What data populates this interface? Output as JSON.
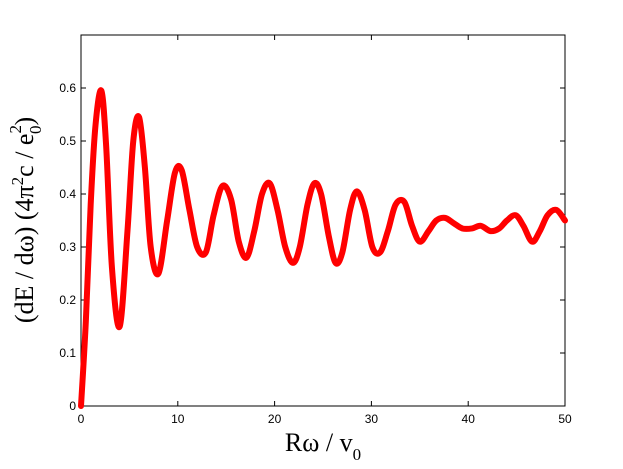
{
  "chart_data": {
    "type": "line",
    "title": "",
    "xlabel": {
      "main": "Rω / v",
      "sub": "0"
    },
    "ylabel": {
      "p1": "(dE / dω) (4π",
      "p1_sup": "2",
      "p2": "c / e",
      "p2_sup": "2",
      "p2_sub": "0",
      "p3": ")"
    },
    "xlim": [
      0,
      50
    ],
    "ylim": [
      0,
      0.7
    ],
    "xticks": [
      0,
      10,
      20,
      30,
      40,
      50
    ],
    "yticks": [
      0,
      0.1,
      0.2,
      0.3,
      0.4,
      0.5,
      0.6
    ],
    "grid": false,
    "legend": "none",
    "series": [
      {
        "color": "#ff0000",
        "x": [
          0.0,
          0.5,
          1.0,
          1.5,
          2.1,
          2.6,
          3.2,
          4.0,
          4.8,
          5.4,
          6.0,
          6.6,
          7.2,
          8.0,
          8.9,
          9.7,
          10.4,
          11.2,
          12.0,
          12.9,
          13.7,
          14.6,
          15.5,
          16.3,
          17.1,
          17.9,
          18.7,
          19.5,
          20.3,
          21.1,
          21.9,
          22.6,
          23.4,
          24.1,
          24.8,
          25.6,
          26.3,
          27.0,
          27.8,
          28.5,
          29.3,
          30.1,
          30.9,
          31.7,
          32.5,
          33.4,
          34.2,
          35.0,
          35.9,
          36.7,
          37.6,
          38.5,
          39.4,
          40.4,
          41.3,
          42.3,
          43.2,
          44.0,
          44.9,
          45.7,
          46.6,
          47.4,
          48.2,
          49.1,
          50.0
        ],
        "y": [
          0.0,
          0.16,
          0.38,
          0.53,
          0.595,
          0.49,
          0.26,
          0.15,
          0.33,
          0.5,
          0.545,
          0.45,
          0.3,
          0.25,
          0.35,
          0.44,
          0.445,
          0.37,
          0.3,
          0.29,
          0.36,
          0.415,
          0.39,
          0.31,
          0.28,
          0.33,
          0.4,
          0.42,
          0.37,
          0.3,
          0.27,
          0.3,
          0.38,
          0.42,
          0.4,
          0.32,
          0.27,
          0.29,
          0.37,
          0.405,
          0.37,
          0.3,
          0.29,
          0.33,
          0.38,
          0.385,
          0.34,
          0.31,
          0.33,
          0.35,
          0.355,
          0.345,
          0.335,
          0.335,
          0.34,
          0.33,
          0.335,
          0.35,
          0.36,
          0.34,
          0.31,
          0.33,
          0.36,
          0.37,
          0.35
        ]
      }
    ]
  }
}
